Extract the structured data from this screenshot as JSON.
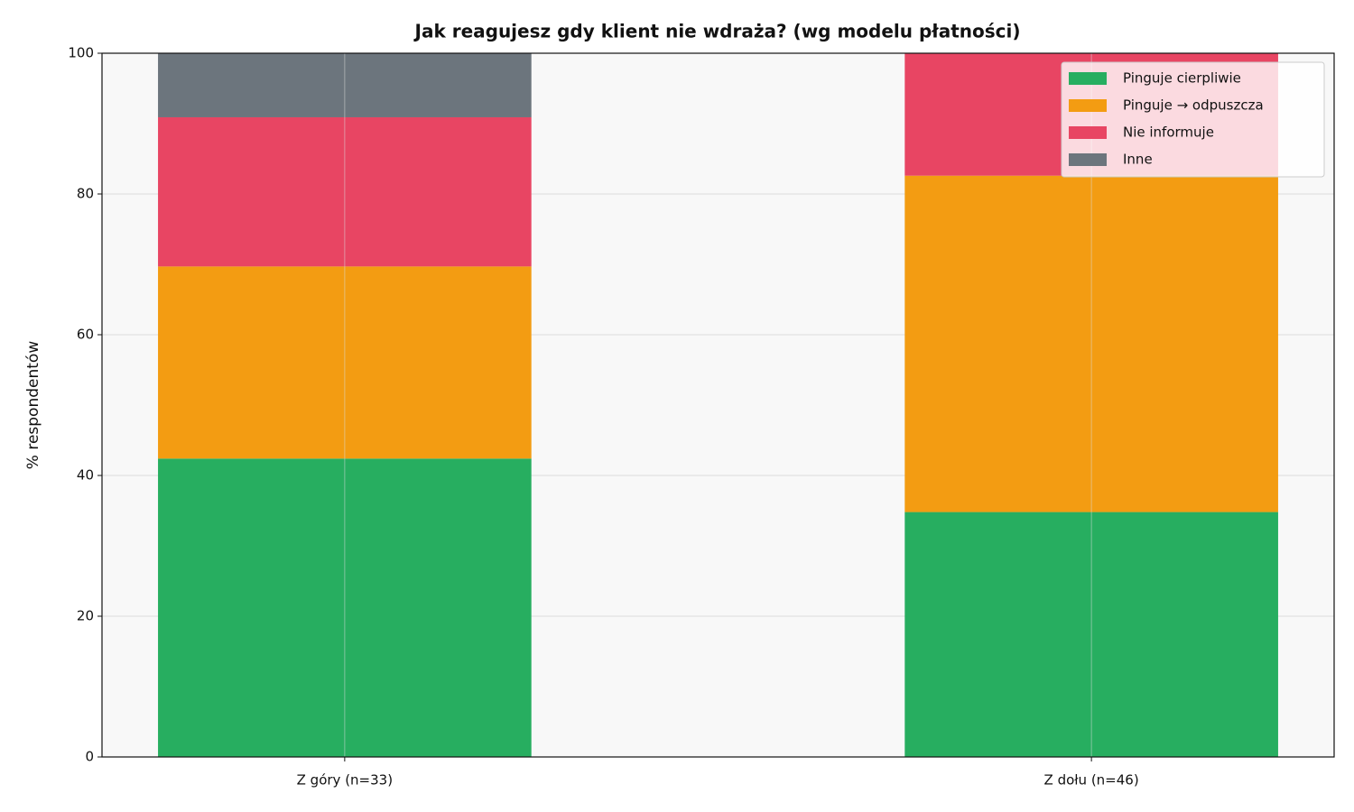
{
  "chart_data": {
    "type": "stacked-bar",
    "title": "Jak reagujesz gdy klient nie wdraża? (wg modelu płatności)",
    "y_label": "% respondentów",
    "categories": [
      "Z góry (n=33)",
      "Z dołu (n=46)"
    ],
    "series": [
      {
        "name": "Pinguje cierpliwie",
        "color": "#27ae60",
        "values": [
          42.4,
          34.8
        ]
      },
      {
        "name": "Pinguje → odpuszcza",
        "color": "#f39c12",
        "values": [
          27.3,
          47.8
        ]
      },
      {
        "name": "Nie informuje",
        "color": "#e84563",
        "values": [
          21.2,
          17.4
        ]
      },
      {
        "name": "Inne",
        "color": "#6c757d",
        "values": [
          9.1,
          0
        ]
      }
    ],
    "ylim": [
      0,
      100
    ],
    "yticks": [
      0,
      20,
      40,
      60,
      80,
      100
    ],
    "grid": true,
    "legend": "upper right"
  }
}
